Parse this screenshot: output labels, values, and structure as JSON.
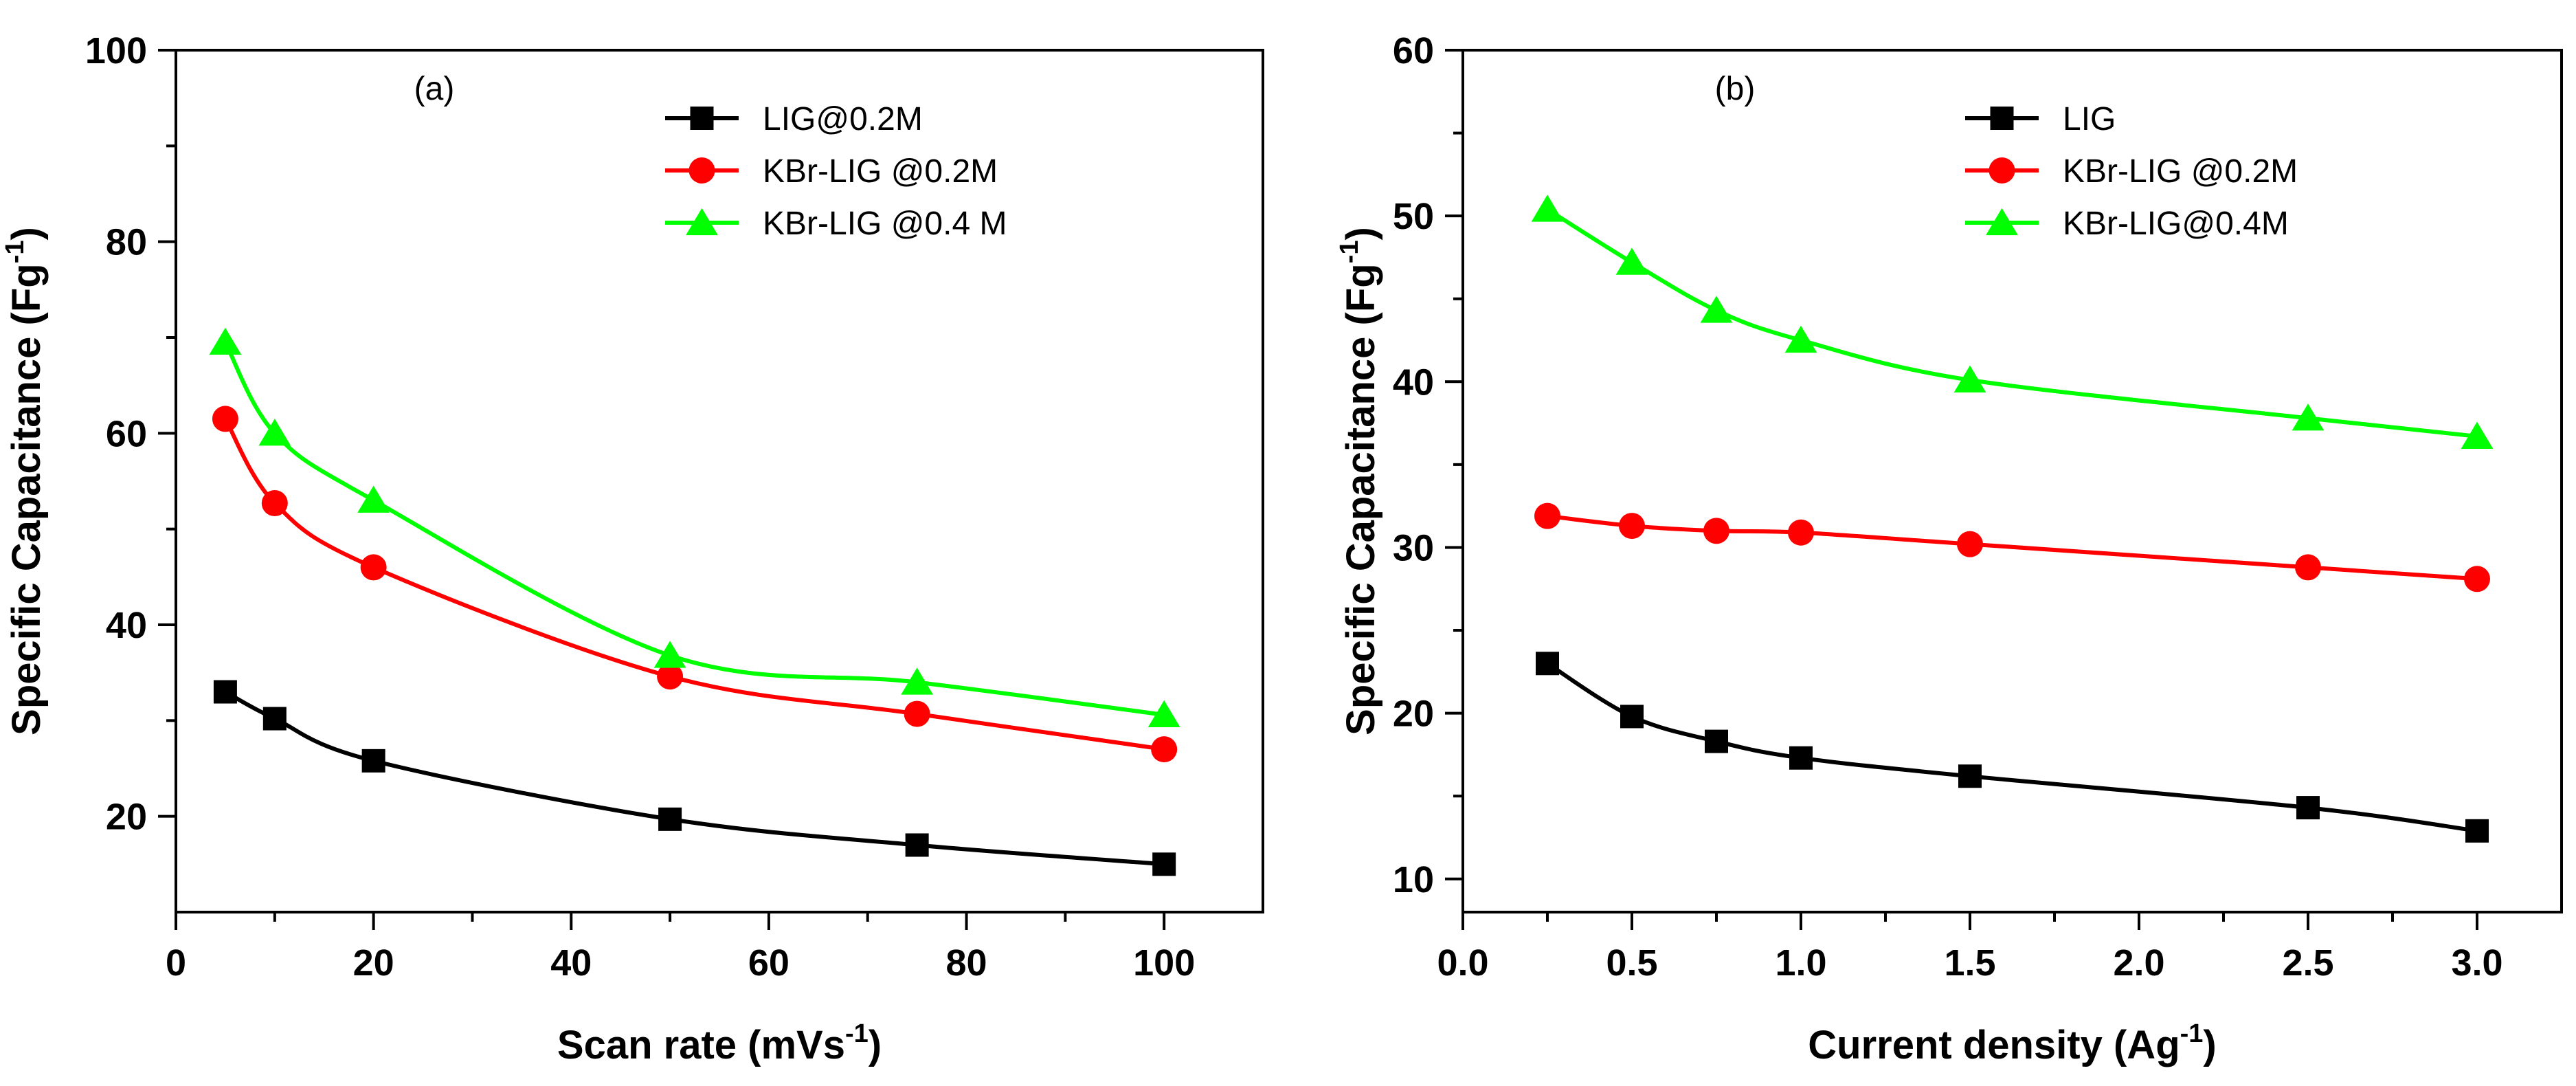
{
  "chart_data": [
    {
      "type": "line",
      "panel_label": "(a)",
      "xlabel": "Scan rate (mVs",
      "xlabel_sup": "-1",
      "xlabel_close": ")",
      "ylabel": "Specific Capacitance (Fg",
      "ylabel_sup": "-1",
      "ylabel_close": ")",
      "xlim": [
        0,
        110
      ],
      "ylim": [
        10,
        100
      ],
      "xticks": [
        0,
        20,
        40,
        60,
        80,
        100
      ],
      "xtick_labels": [
        "0",
        "20",
        "40",
        "60",
        "80",
        "100"
      ],
      "yticks": [
        20,
        40,
        60,
        80,
        100
      ],
      "ytick_labels": [
        "20",
        "40",
        "60",
        "80",
        "100"
      ],
      "legend_position": "top-right",
      "grid": false,
      "series": [
        {
          "name": "LIG@0.2M",
          "color": "#000000",
          "marker": "square",
          "x": [
            5,
            10,
            20,
            50,
            75,
            100
          ],
          "y": [
            33,
            30.2,
            25.8,
            19.7,
            17,
            15
          ]
        },
        {
          "name": "KBr-LIG @0.2M",
          "color": "#ff0000",
          "marker": "circle",
          "x": [
            5,
            10,
            20,
            50,
            75,
            100
          ],
          "y": [
            61.5,
            52.7,
            46,
            34.6,
            30.7,
            27
          ]
        },
        {
          "name": "KBr-LIG @0.4 M",
          "color": "#00ff00",
          "marker": "triangle",
          "x": [
            5,
            10,
            20,
            50,
            75,
            100
          ],
          "y": [
            69.5,
            60,
            53,
            36.8,
            34,
            30.6
          ]
        }
      ]
    },
    {
      "type": "line",
      "panel_label": "(b)",
      "xlabel": "Current density (Ag",
      "xlabel_sup": "-1",
      "xlabel_close": ")",
      "ylabel": "Specific Capacitance (Fg",
      "ylabel_sup": "-1",
      "ylabel_close": ")",
      "xlim": [
        0,
        3.25
      ],
      "ylim": [
        8,
        60
      ],
      "xticks": [
        0,
        0.5,
        1,
        1.5,
        2,
        2.5,
        3
      ],
      "xtick_labels": [
        "0.0",
        "0.5",
        "1.0",
        "1.5",
        "2.0",
        "2.5",
        "3.0"
      ],
      "yticks": [
        10,
        20,
        30,
        40,
        50,
        60
      ],
      "ytick_labels": [
        "10",
        "20",
        "30",
        "40",
        "50",
        "60"
      ],
      "legend_position": "top-right",
      "grid": false,
      "series": [
        {
          "name": "LIG",
          "color": "#000000",
          "marker": "square",
          "x": [
            0.25,
            0.5,
            0.75,
            1,
            1.5,
            2.5,
            3
          ],
          "y": [
            23,
            19.8,
            18.3,
            17.3,
            16.2,
            14.3,
            12.9
          ]
        },
        {
          "name": "KBr-LIG @0.2M",
          "color": "#ff0000",
          "marker": "circle",
          "x": [
            0.25,
            0.5,
            0.75,
            1,
            1.5,
            2.5,
            3
          ],
          "y": [
            31.9,
            31.3,
            31,
            30.9,
            30.2,
            28.8,
            28.1
          ]
        },
        {
          "name": "KBr-LIG@0.4M",
          "color": "#00ff00",
          "marker": "triangle",
          "x": [
            0.25,
            0.5,
            0.75,
            1,
            1.5,
            2.5,
            3
          ],
          "y": [
            50.4,
            47.2,
            44.3,
            42.5,
            40.1,
            37.8,
            36.7
          ]
        }
      ]
    }
  ]
}
